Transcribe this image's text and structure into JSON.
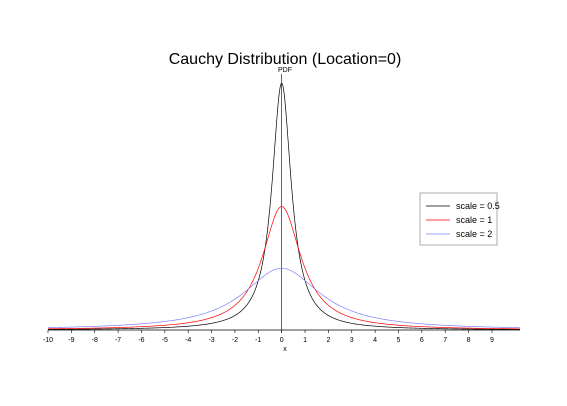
{
  "chart_data": {
    "type": "line",
    "title": "Cauchy Distribution (Location=0)",
    "xlabel": "x",
    "ylabel": "PDF",
    "xlim": [
      -10,
      10.2
    ],
    "ylim": [
      0,
      0.66
    ],
    "x_ticks": [
      -10,
      -9,
      -8,
      -7,
      -6,
      -5,
      -4,
      -3,
      -2,
      -1,
      0,
      1,
      2,
      3,
      4,
      5,
      6,
      7,
      8,
      9
    ],
    "grid": false,
    "legend": "right",
    "series": [
      {
        "name": "scale = 0.5",
        "color": "#000000",
        "scale": 0.5,
        "peak": 0.6366
      },
      {
        "name": "scale = 1",
        "color": "#ff0000",
        "scale": 1,
        "peak": 0.3183
      },
      {
        "name": "scale = 2",
        "color": "#8080ff",
        "scale": 2,
        "peak": 0.1592
      }
    ]
  }
}
